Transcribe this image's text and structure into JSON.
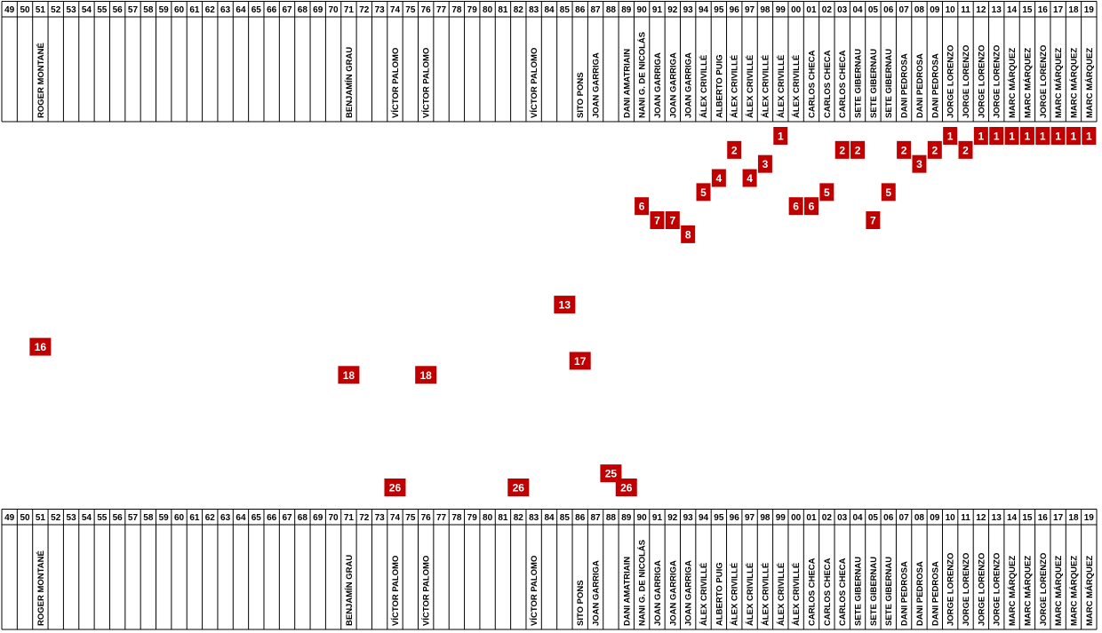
{
  "chart_data": {
    "type": "scatter",
    "title": "",
    "xlabel": "",
    "ylabel": "",
    "ylim": [
      1,
      26
    ],
    "y_inverted": true,
    "grid": false,
    "marker_color": "#c00000",
    "label_color": "#ffffff",
    "years": [
      "49",
      "50",
      "51",
      "52",
      "53",
      "54",
      "55",
      "56",
      "57",
      "58",
      "59",
      "60",
      "61",
      "62",
      "63",
      "64",
      "65",
      "66",
      "67",
      "68",
      "69",
      "70",
      "71",
      "72",
      "73",
      "74",
      "75",
      "76",
      "77",
      "78",
      "79",
      "80",
      "81",
      "82",
      "83",
      "84",
      "85",
      "86",
      "87",
      "88",
      "89",
      "90",
      "91",
      "92",
      "93",
      "94",
      "95",
      "96",
      "97",
      "98",
      "99",
      "00",
      "01",
      "02",
      "03",
      "04",
      "05",
      "06",
      "07",
      "08",
      "09",
      "10",
      "11",
      "12",
      "13",
      "14",
      "15",
      "16",
      "17",
      "18",
      "19"
    ],
    "riders": [
      "",
      "",
      "ROGER MONTANÉ",
      "",
      "",
      "",
      "",
      "",
      "",
      "",
      "",
      "",
      "",
      "",
      "",
      "",
      "",
      "",
      "",
      "",
      "",
      "",
      "BENJAMÍN GRAU",
      "",
      "",
      "VÍCTOR PALOMO",
      "",
      "VÍCTOR PALOMO",
      "",
      "",
      "",
      "",
      "",
      "",
      "VÍCTOR PALOMO",
      "",
      "",
      "SITO PONS",
      "JOAN GARRIGA",
      "",
      "DANI AMATRIAIN",
      "NANI G. DE NICOLÁS",
      "JOAN GARRIGA",
      "JOAN GARRIGA",
      "JOAN GARRIGA",
      "ÁLEX CRIVILLÉ",
      "ALBERTO PUIG",
      "ÁLEX CRIVILLÉ",
      "ÁLEX CRIVILLÉ",
      "ÁLEX CRIVILLÉ",
      "ÁLEX CRIVILLÉ",
      "ÁLEX CRIVILLÉ",
      "CARLOS CHECA",
      "CARLOS CHECA",
      "CARLOS CHECA",
      "SETE GIBERNAU",
      "SETE GIBERNAU",
      "SETE GIBERNAU",
      "DANI PEDROSA",
      "DANI PEDROSA",
      "DANI PEDROSA",
      "JORGE LORENZO",
      "JORGE LORENZO",
      "JORGE LORENZO",
      "JORGE LORENZO",
      "MARC MÁRQUEZ",
      "MARC MÁRQUEZ",
      "JORGE LORENZO",
      "MARC MÁRQUEZ",
      "MARC MÁRQUEZ",
      "MARC MÁRQUEZ",
      "MARC MÁRQUEZ"
    ],
    "points": [
      {
        "x": "51",
        "y": 16,
        "label": "16"
      },
      {
        "x": "71",
        "y": 18,
        "label": "18"
      },
      {
        "x": "74",
        "y": 26,
        "label": "26"
      },
      {
        "x": "76",
        "y": 18,
        "label": "18"
      },
      {
        "x": "82",
        "y": 26,
        "label": "26"
      },
      {
        "x": "85",
        "y": 13,
        "label": "13"
      },
      {
        "x": "86",
        "y": 17,
        "label": "17"
      },
      {
        "x": "88",
        "y": 25,
        "label": "25"
      },
      {
        "x": "89",
        "y": 26,
        "label": "26"
      },
      {
        "x": "90",
        "y": 6,
        "label": "6"
      },
      {
        "x": "91",
        "y": 7,
        "label": "7"
      },
      {
        "x": "92",
        "y": 7,
        "label": "7"
      },
      {
        "x": "93",
        "y": 8,
        "label": "8"
      },
      {
        "x": "94",
        "y": 5,
        "label": "5"
      },
      {
        "x": "95",
        "y": 4,
        "label": "4"
      },
      {
        "x": "96",
        "y": 2,
        "label": "2"
      },
      {
        "x": "97",
        "y": 4,
        "label": "4"
      },
      {
        "x": "98",
        "y": 3,
        "label": "3"
      },
      {
        "x": "99",
        "y": 1,
        "label": "1"
      },
      {
        "x": "00",
        "y": 6,
        "label": "6"
      },
      {
        "x": "01",
        "y": 6,
        "label": "6"
      },
      {
        "x": "02",
        "y": 5,
        "label": "5"
      },
      {
        "x": "03",
        "y": 2,
        "label": "2"
      },
      {
        "x": "04",
        "y": 2,
        "label": "2"
      },
      {
        "x": "05",
        "y": 7,
        "label": "7"
      },
      {
        "x": "06",
        "y": 5,
        "label": "5"
      },
      {
        "x": "07",
        "y": 2,
        "label": "2"
      },
      {
        "x": "08",
        "y": 3,
        "label": "3"
      },
      {
        "x": "09",
        "y": 2,
        "label": "2"
      },
      {
        "x": "10",
        "y": 1,
        "label": "1"
      },
      {
        "x": "11",
        "y": 2,
        "label": "2"
      },
      {
        "x": "12",
        "y": 1,
        "label": "1"
      },
      {
        "x": "13",
        "y": 1,
        "label": "1"
      },
      {
        "x": "14",
        "y": 1,
        "label": "1"
      },
      {
        "x": "15",
        "y": 1,
        "label": "1"
      },
      {
        "x": "16",
        "y": 1,
        "label": "1"
      },
      {
        "x": "17",
        "y": 1,
        "label": "1"
      },
      {
        "x": "18",
        "y": 1,
        "label": "1"
      },
      {
        "x": "19",
        "y": 1,
        "label": "1"
      }
    ]
  }
}
